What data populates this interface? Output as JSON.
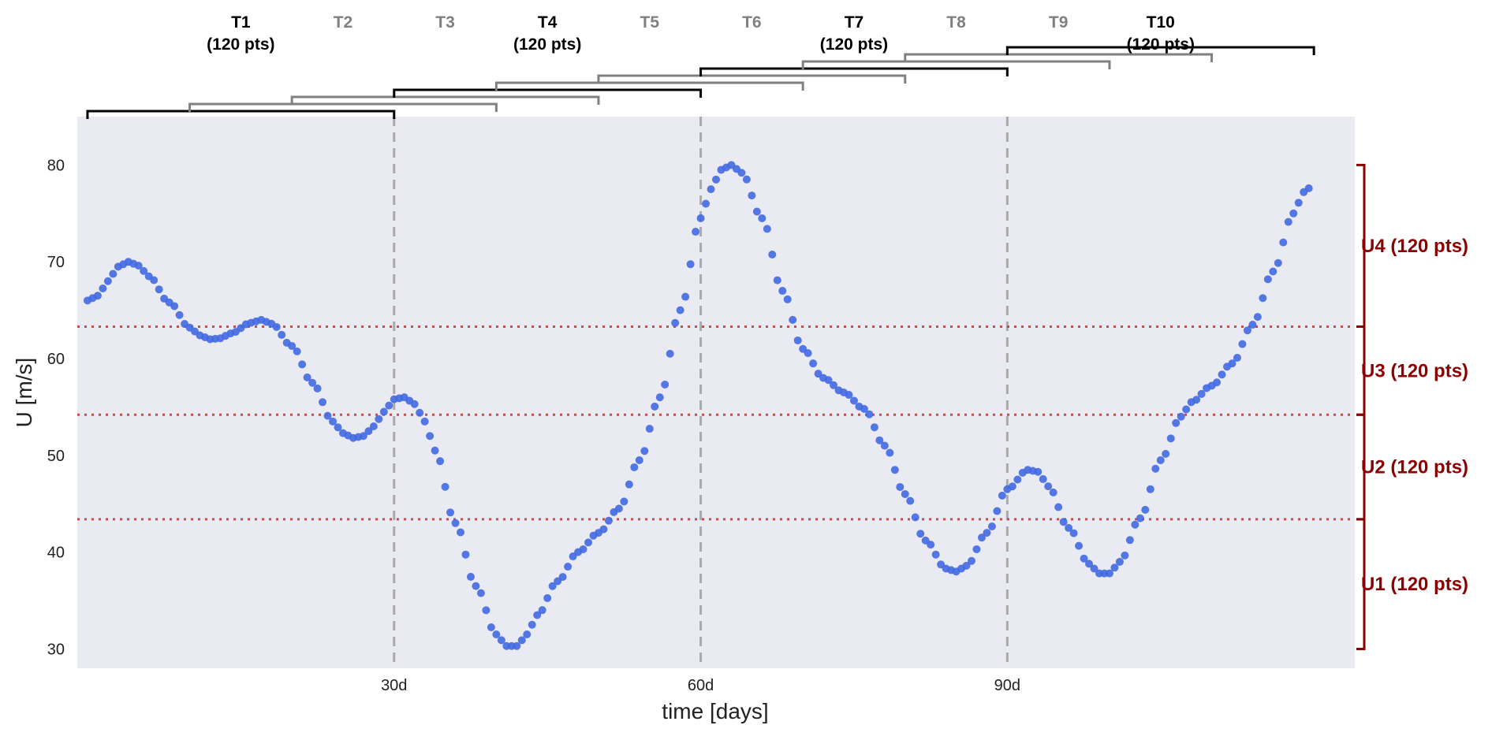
{
  "chart_data": {
    "type": "scatter",
    "xlabel": "time [days]",
    "ylabel": "U [m/s]",
    "xlim": [
      -1,
      124
    ],
    "ylim": [
      28,
      85
    ],
    "x_ticks": [
      30,
      60,
      90
    ],
    "x_tick_labels": [
      "30d",
      "60d",
      "90d"
    ],
    "y_ticks": [
      30,
      40,
      50,
      60,
      70,
      80
    ],
    "grid": false,
    "background": "#eaeaf2",
    "series": [
      {
        "color": "#4169e1",
        "x_range": [
          0,
          119.5
        ],
        "n_points": 240,
        "curve_points": [
          [
            0,
            66
          ],
          [
            1,
            66.5
          ],
          [
            2,
            68
          ],
          [
            3,
            69.5
          ],
          [
            4,
            70
          ],
          [
            5,
            69.6
          ],
          [
            6,
            68.5
          ],
          [
            8,
            65.8
          ],
          [
            10,
            63.2
          ],
          [
            11,
            62.4
          ],
          [
            12,
            62
          ],
          [
            13,
            62.1
          ],
          [
            14,
            62.6
          ],
          [
            16,
            63.7
          ],
          [
            17,
            64
          ],
          [
            18,
            63.6
          ],
          [
            20,
            61.3
          ],
          [
            22,
            57.5
          ],
          [
            24,
            53.5
          ],
          [
            25,
            52.3
          ],
          [
            26,
            51.8
          ],
          [
            27,
            52
          ],
          [
            28,
            53
          ],
          [
            29,
            54.5
          ],
          [
            30,
            55.8
          ],
          [
            31,
            56
          ],
          [
            32,
            55.3
          ],
          [
            33,
            53.5
          ],
          [
            34,
            50.5
          ],
          [
            36,
            43
          ],
          [
            38,
            36.5
          ],
          [
            40,
            31.5
          ],
          [
            41,
            30.3
          ],
          [
            42,
            30.3
          ],
          [
            43,
            31.5
          ],
          [
            44,
            33.5
          ],
          [
            46,
            37
          ],
          [
            48,
            40
          ],
          [
            50,
            42
          ],
          [
            52,
            44.5
          ],
          [
            54,
            49.5
          ],
          [
            56,
            56
          ],
          [
            58,
            65
          ],
          [
            60,
            74.5
          ],
          [
            61,
            77.5
          ],
          [
            62,
            79.5
          ],
          [
            63,
            80
          ],
          [
            64,
            79.2
          ],
          [
            66,
            74.5
          ],
          [
            68,
            67
          ],
          [
            70,
            61
          ],
          [
            72,
            58
          ],
          [
            74,
            56.5
          ],
          [
            76,
            54.8
          ],
          [
            78,
            51
          ],
          [
            80,
            46
          ],
          [
            82,
            41.2
          ],
          [
            84,
            38.3
          ],
          [
            85,
            38
          ],
          [
            86,
            38.6
          ],
          [
            88,
            42
          ],
          [
            90,
            46.5
          ],
          [
            92,
            48.5
          ],
          [
            93,
            48.3
          ],
          [
            94,
            46.8
          ],
          [
            96,
            42.5
          ],
          [
            98,
            38.8
          ],
          [
            99,
            37.8
          ],
          [
            100,
            37.8
          ],
          [
            101,
            39
          ],
          [
            103,
            43.5
          ],
          [
            105,
            49.5
          ],
          [
            107,
            54
          ],
          [
            108,
            55.5
          ],
          [
            110,
            57.2
          ],
          [
            112,
            59.5
          ],
          [
            114,
            63.5
          ],
          [
            116,
            69
          ],
          [
            118,
            75
          ],
          [
            119,
            77.2
          ],
          [
            119.5,
            77.6
          ]
        ]
      }
    ],
    "vlines": [
      30,
      60,
      90
    ],
    "hlines": [
      43.4,
      54.2,
      63.3
    ],
    "time_segments": [
      {
        "label": "T1",
        "sublabel": "(120 pts)",
        "start": 0,
        "end": 30,
        "emphasis": true
      },
      {
        "label": "T2",
        "sublabel": "",
        "start": 10,
        "end": 40,
        "emphasis": false
      },
      {
        "label": "T3",
        "sublabel": "",
        "start": 20,
        "end": 50,
        "emphasis": false
      },
      {
        "label": "T4",
        "sublabel": "(120 pts)",
        "start": 30,
        "end": 60,
        "emphasis": true
      },
      {
        "label": "T5",
        "sublabel": "",
        "start": 40,
        "end": 70,
        "emphasis": false
      },
      {
        "label": "T6",
        "sublabel": "",
        "start": 50,
        "end": 80,
        "emphasis": false
      },
      {
        "label": "T7",
        "sublabel": "(120 pts)",
        "start": 60,
        "end": 90,
        "emphasis": true
      },
      {
        "label": "T8",
        "sublabel": "",
        "start": 70,
        "end": 100,
        "emphasis": false
      },
      {
        "label": "T9",
        "sublabel": "",
        "start": 80,
        "end": 110,
        "emphasis": false
      },
      {
        "label": "T10",
        "sublabel": "(120 pts)",
        "start": 90,
        "end": 120,
        "emphasis": true
      }
    ],
    "value_segments": [
      {
        "label": "U1 (120 pts)",
        "low": 30,
        "high": 43.4
      },
      {
        "label": "U2 (120 pts)",
        "low": 43.4,
        "high": 54.2
      },
      {
        "label": "U3 (120 pts)",
        "low": 54.2,
        "high": 63.3
      },
      {
        "label": "U4 (120 pts)",
        "low": 63.3,
        "high": 80
      }
    ],
    "colors": {
      "emphasis_bracket": "#000000",
      "muted_bracket": "#808080",
      "value_bracket": "#8b0000",
      "hline": "#c0504d",
      "vline": "#aaaaaa"
    }
  }
}
